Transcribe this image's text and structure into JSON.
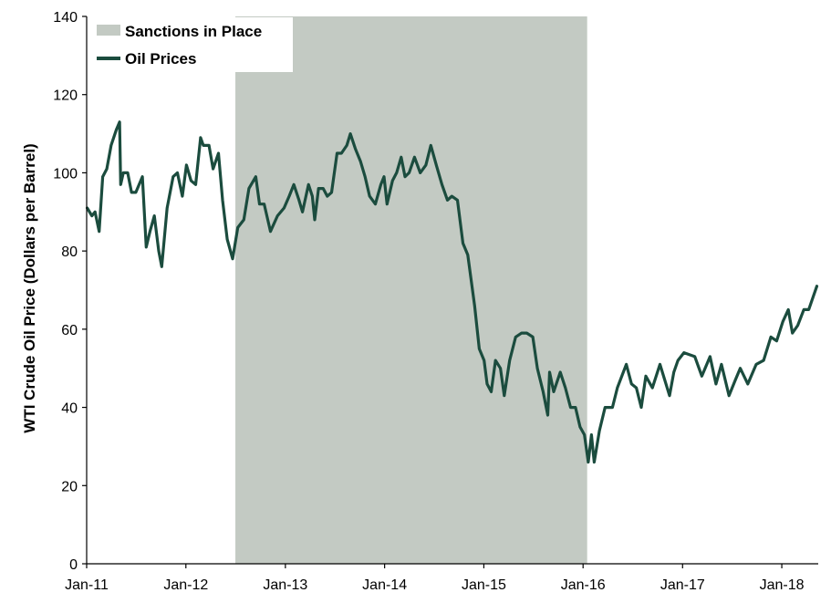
{
  "chart_data": {
    "type": "line",
    "ylabel": "WTI Crude Oil Price (Dollars per Barrel)",
    "ylim": [
      0,
      140
    ],
    "y_ticks": [
      0,
      20,
      40,
      60,
      80,
      100,
      120,
      140
    ],
    "x_range": [
      "2011-01-01",
      "2018-05-15"
    ],
    "x_ticks": [
      {
        "date": "2011-01-01",
        "label": "Jan-11"
      },
      {
        "date": "2012-01-01",
        "label": "Jan-12"
      },
      {
        "date": "2013-01-01",
        "label": "Jan-13"
      },
      {
        "date": "2014-01-01",
        "label": "Jan-14"
      },
      {
        "date": "2015-01-01",
        "label": "Jan-15"
      },
      {
        "date": "2016-01-01",
        "label": "Jan-16"
      },
      {
        "date": "2017-01-01",
        "label": "Jan-17"
      },
      {
        "date": "2018-01-01",
        "label": "Jan-18"
      }
    ],
    "grid": false,
    "legend_position": "top-left",
    "shaded_regions": [
      {
        "name": "Sanctions in Place",
        "start": "2012-07-01",
        "end": "2016-01-16",
        "color": "#c3cac3"
      }
    ],
    "series": [
      {
        "name": "Oil Prices",
        "color": "#1b4c3e",
        "points": [
          [
            "2011-01-03",
            91
          ],
          [
            "2011-01-20",
            89
          ],
          [
            "2011-02-01",
            90
          ],
          [
            "2011-02-16",
            85
          ],
          [
            "2011-03-01",
            99
          ],
          [
            "2011-03-16",
            101
          ],
          [
            "2011-04-01",
            107
          ],
          [
            "2011-04-20",
            111
          ],
          [
            "2011-05-02",
            113
          ],
          [
            "2011-05-06",
            97
          ],
          [
            "2011-05-16",
            100
          ],
          [
            "2011-06-01",
            100
          ],
          [
            "2011-06-15",
            95
          ],
          [
            "2011-07-01",
            95
          ],
          [
            "2011-07-25",
            99
          ],
          [
            "2011-08-08",
            81
          ],
          [
            "2011-08-22",
            85
          ],
          [
            "2011-09-07",
            89
          ],
          [
            "2011-09-23",
            80
          ],
          [
            "2011-10-04",
            76
          ],
          [
            "2011-10-24",
            91
          ],
          [
            "2011-11-15",
            99
          ],
          [
            "2011-12-01",
            100
          ],
          [
            "2011-12-19",
            94
          ],
          [
            "2012-01-03",
            102
          ],
          [
            "2012-01-20",
            98
          ],
          [
            "2012-02-06",
            97
          ],
          [
            "2012-02-24",
            109
          ],
          [
            "2012-03-05",
            107
          ],
          [
            "2012-03-26",
            107
          ],
          [
            "2012-04-10",
            101
          ],
          [
            "2012-04-30",
            105
          ],
          [
            "2012-05-15",
            93
          ],
          [
            "2012-06-01",
            83
          ],
          [
            "2012-06-21",
            78
          ],
          [
            "2012-07-10",
            86
          ],
          [
            "2012-08-01",
            88
          ],
          [
            "2012-08-20",
            96
          ],
          [
            "2012-09-14",
            99
          ],
          [
            "2012-09-28",
            92
          ],
          [
            "2012-10-15",
            92
          ],
          [
            "2012-11-07",
            85
          ],
          [
            "2012-12-03",
            89
          ],
          [
            "2012-12-27",
            91
          ],
          [
            "2013-01-15",
            94
          ],
          [
            "2013-02-01",
            97
          ],
          [
            "2013-02-20",
            93
          ],
          [
            "2013-03-05",
            90
          ],
          [
            "2013-03-27",
            97
          ],
          [
            "2013-04-10",
            94
          ],
          [
            "2013-04-19",
            88
          ],
          [
            "2013-05-03",
            96
          ],
          [
            "2013-05-20",
            96
          ],
          [
            "2013-06-04",
            94
          ],
          [
            "2013-06-20",
            95
          ],
          [
            "2013-07-10",
            105
          ],
          [
            "2013-07-26",
            105
          ],
          [
            "2013-08-15",
            107
          ],
          [
            "2013-08-28",
            110
          ],
          [
            "2013-09-16",
            106
          ],
          [
            "2013-10-04",
            103
          ],
          [
            "2013-10-21",
            99
          ],
          [
            "2013-11-07",
            94
          ],
          [
            "2013-11-28",
            92
          ],
          [
            "2013-12-18",
            97
          ],
          [
            "2013-12-30",
            99
          ],
          [
            "2014-01-10",
            92
          ],
          [
            "2014-01-30",
            98
          ],
          [
            "2014-02-14",
            100
          ],
          [
            "2014-03-03",
            104
          ],
          [
            "2014-03-17",
            99
          ],
          [
            "2014-04-01",
            100
          ],
          [
            "2014-04-21",
            104
          ],
          [
            "2014-05-12",
            100
          ],
          [
            "2014-06-02",
            102
          ],
          [
            "2014-06-20",
            107
          ],
          [
            "2014-07-10",
            102
          ],
          [
            "2014-07-31",
            97
          ],
          [
            "2014-08-20",
            93
          ],
          [
            "2014-09-05",
            94
          ],
          [
            "2014-09-26",
            93
          ],
          [
            "2014-10-16",
            82
          ],
          [
            "2014-11-03",
            79
          ],
          [
            "2014-11-28",
            66
          ],
          [
            "2014-12-15",
            55
          ],
          [
            "2015-01-02",
            52
          ],
          [
            "2015-01-13",
            46
          ],
          [
            "2015-01-28",
            44
          ],
          [
            "2015-02-13",
            52
          ],
          [
            "2015-03-03",
            50
          ],
          [
            "2015-03-17",
            43
          ],
          [
            "2015-04-06",
            52
          ],
          [
            "2015-04-28",
            58
          ],
          [
            "2015-05-20",
            59
          ],
          [
            "2015-06-08",
            59
          ],
          [
            "2015-06-30",
            58
          ],
          [
            "2015-07-17",
            50
          ],
          [
            "2015-08-07",
            44
          ],
          [
            "2015-08-24",
            38
          ],
          [
            "2015-08-31",
            49
          ],
          [
            "2015-09-15",
            44
          ],
          [
            "2015-10-09",
            49
          ],
          [
            "2015-10-28",
            45
          ],
          [
            "2015-11-16",
            40
          ],
          [
            "2015-12-04",
            40
          ],
          [
            "2015-12-21",
            35
          ],
          [
            "2016-01-06",
            33
          ],
          [
            "2016-01-20",
            26
          ],
          [
            "2016-02-01",
            33
          ],
          [
            "2016-02-11",
            26
          ],
          [
            "2016-03-01",
            34
          ],
          [
            "2016-03-22",
            40
          ],
          [
            "2016-04-18",
            40
          ],
          [
            "2016-05-06",
            45
          ],
          [
            "2016-06-08",
            51
          ],
          [
            "2016-06-27",
            46
          ],
          [
            "2016-07-15",
            45
          ],
          [
            "2016-08-02",
            40
          ],
          [
            "2016-08-19",
            48
          ],
          [
            "2016-09-12",
            45
          ],
          [
            "2016-10-10",
            51
          ],
          [
            "2016-11-14",
            43
          ],
          [
            "2016-11-30",
            49
          ],
          [
            "2016-12-15",
            52
          ],
          [
            "2017-01-06",
            54
          ],
          [
            "2017-02-15",
            53
          ],
          [
            "2017-03-13",
            48
          ],
          [
            "2017-04-12",
            53
          ],
          [
            "2017-05-04",
            46
          ],
          [
            "2017-05-24",
            51
          ],
          [
            "2017-06-21",
            43
          ],
          [
            "2017-07-14",
            47
          ],
          [
            "2017-08-01",
            50
          ],
          [
            "2017-08-29",
            46
          ],
          [
            "2017-09-29",
            51
          ],
          [
            "2017-10-26",
            52
          ],
          [
            "2017-11-22",
            58
          ],
          [
            "2017-12-13",
            57
          ],
          [
            "2018-01-05",
            62
          ],
          [
            "2018-01-25",
            65
          ],
          [
            "2018-02-09",
            59
          ],
          [
            "2018-03-01",
            61
          ],
          [
            "2018-03-23",
            65
          ],
          [
            "2018-04-10",
            65
          ],
          [
            "2018-04-25",
            68
          ],
          [
            "2018-05-10",
            71
          ]
        ]
      }
    ]
  }
}
